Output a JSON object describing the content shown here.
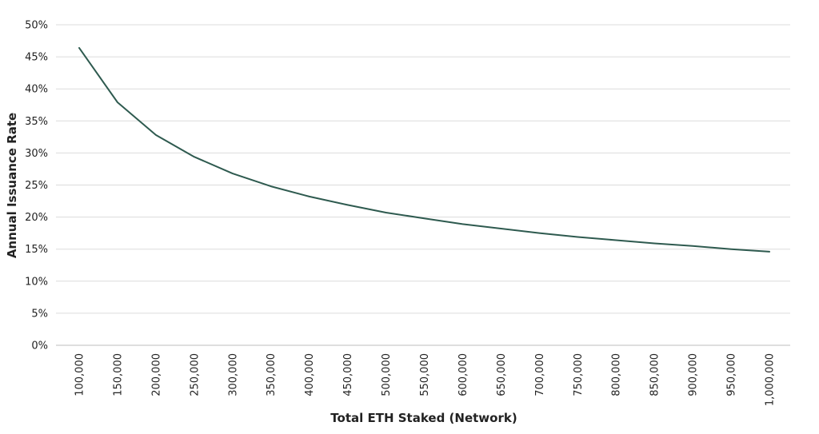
{
  "chart_data": {
    "type": "line",
    "title": "",
    "xlabel": "Total ETH Staked (Network)",
    "ylabel": "Annual Issuance Rate",
    "x": [
      100000,
      150000,
      200000,
      250000,
      300000,
      350000,
      400000,
      450000,
      500000,
      550000,
      600000,
      650000,
      700000,
      750000,
      800000,
      850000,
      900000,
      950000,
      1000000
    ],
    "x_tick_labels": [
      "100,000",
      "150,000",
      "200,000",
      "250,000",
      "300,000",
      "350,000",
      "400,000",
      "450,000",
      "500,000",
      "550,000",
      "600,000",
      "650,000",
      "700,000",
      "750,000",
      "800,000",
      "850,000",
      "900,000",
      "950,000",
      "1,000,000"
    ],
    "series": [
      {
        "values": [
          46.4,
          37.9,
          32.8,
          29.4,
          26.8,
          24.8,
          23.2,
          21.9,
          20.7,
          19.8,
          18.9,
          18.2,
          17.5,
          16.9,
          16.4,
          15.9,
          15.5,
          15.0,
          14.6
        ]
      }
    ],
    "ylim": [
      0,
      50
    ],
    "y_ticks": [
      0,
      5,
      10,
      15,
      20,
      25,
      30,
      35,
      40,
      45,
      50
    ],
    "y_tick_labels": [
      "0%",
      "5%",
      "10%",
      "15%",
      "20%",
      "25%",
      "30%",
      "35%",
      "40%",
      "45%",
      "50%"
    ],
    "grid": true,
    "legend": "none",
    "line_color": "#2e5a4f",
    "grid_color": "#dcdcdc"
  }
}
